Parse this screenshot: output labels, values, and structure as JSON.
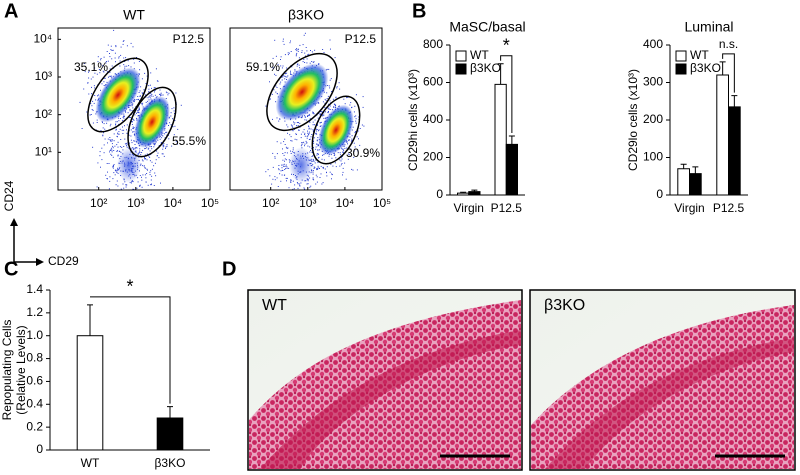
{
  "panels": [
    "A",
    "B",
    "C",
    "D"
  ],
  "axis_labels": {
    "x": "CD29",
    "y": "CD24"
  },
  "chart_data": [
    {
      "type": "density",
      "title": "WT",
      "annotation": "P12.5",
      "log": true,
      "xlim": [
        8,
        100000
      ],
      "ylim": [
        1,
        20000
      ],
      "xticks": [
        {
          "value": 100,
          "label": "10²"
        },
        {
          "value": 1000,
          "label": "10³"
        },
        {
          "value": 10000,
          "label": "10⁴"
        },
        {
          "value": 100000,
          "label": "10⁵"
        }
      ],
      "yticks": [
        {
          "value": 10,
          "label": "10¹"
        },
        {
          "value": 100,
          "label": "10²"
        },
        {
          "value": 1000,
          "label": "10³"
        },
        {
          "value": 10000,
          "label": "10⁴"
        }
      ],
      "gates": [
        "35.1%",
        "55.5%"
      ]
    },
    {
      "type": "density",
      "title": "β3KO",
      "annotation": "P12.5",
      "log": true,
      "xlim": [
        8,
        100000
      ],
      "ylim": [
        1,
        20000
      ],
      "xticks": [
        {
          "value": 100,
          "label": "10²"
        },
        {
          "value": 1000,
          "label": "10³"
        },
        {
          "value": 10000,
          "label": "10⁴"
        },
        {
          "value": 100000,
          "label": "10⁵"
        }
      ],
      "gates": [
        "59.1%",
        "30.9%"
      ]
    },
    {
      "type": "bar",
      "title": "MaSC/basal",
      "ylabel": "CD29hi cells (x10³)",
      "categories": [
        "Virgin",
        "P12.5"
      ],
      "series": [
        {
          "name": "WT",
          "color": "#ffffff",
          "values": [
            10,
            590
          ],
          "errors": [
            5,
            110
          ]
        },
        {
          "name": "β3KO",
          "color": "#000000",
          "values": [
            18,
            270
          ],
          "errors": [
            8,
            45
          ]
        }
      ],
      "ylim": [
        0,
        800
      ],
      "yticks": [
        0,
        200,
        400,
        600,
        800
      ],
      "annotation": "*"
    },
    {
      "type": "bar",
      "title": "Luminal",
      "ylabel": "CD29lo cells (x10³)",
      "categories": [
        "Virgin",
        "P12.5"
      ],
      "series": [
        {
          "name": "WT",
          "color": "#ffffff",
          "values": [
            70,
            320
          ],
          "errors": [
            12,
            35
          ]
        },
        {
          "name": "β3KO",
          "color": "#000000",
          "values": [
            57,
            235
          ],
          "errors": [
            18,
            30
          ]
        }
      ],
      "ylim": [
        0,
        400
      ],
      "yticks": [
        0,
        100,
        200,
        300,
        400
      ],
      "annotation": "n.s."
    },
    {
      "type": "bar",
      "ylabel": [
        "Repopulating Cells",
        "(Relative Levels)"
      ],
      "categories": [
        "WT",
        "β3KO"
      ],
      "values": [
        1.0,
        0.28
      ],
      "errors": [
        0.27,
        0.1
      ],
      "colors": [
        "#ffffff",
        "#000000"
      ],
      "ylim": [
        0,
        1.4
      ],
      "yticks": [
        0,
        0.2,
        0.4,
        0.6,
        0.8,
        {
          "value": 1,
          "label": "1.0"
        },
        1.2,
        1.4
      ],
      "annotation": "*"
    }
  ],
  "images": [
    {
      "label": "WT"
    },
    {
      "label": "β3KO"
    }
  ]
}
